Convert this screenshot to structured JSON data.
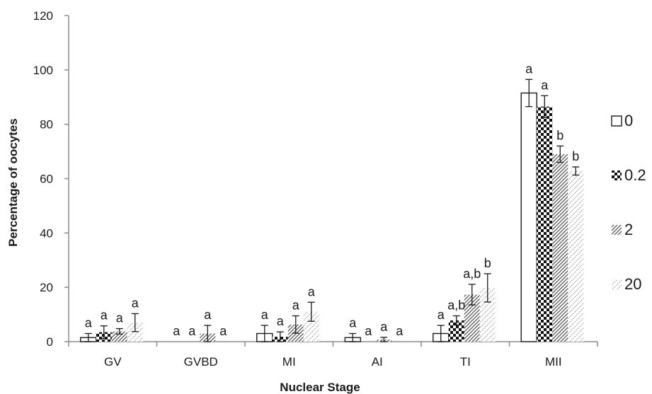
{
  "chart_data": {
    "type": "bar",
    "title": "",
    "xlabel": "Nuclear Stage",
    "ylabel": "Percentage of  oocytes",
    "ylim": [
      0,
      120
    ],
    "yticks": [
      0,
      20,
      40,
      60,
      80,
      100,
      120
    ],
    "grid": false,
    "legend_position": "right",
    "categories": [
      "GV",
      "GVBD",
      "MI",
      "AI",
      "TI",
      "MII"
    ],
    "series": [
      {
        "name": "0",
        "pattern": "open",
        "values": [
          1.5,
          0,
          3,
          1.5,
          3,
          91.5
        ],
        "errors": [
          1.5,
          0,
          3,
          1.5,
          3,
          5
        ],
        "labels": [
          "a",
          "a",
          "a",
          "a",
          "a",
          "a"
        ]
      },
      {
        "name": "0.2",
        "pattern": "checker",
        "values": [
          3.5,
          0,
          1.8,
          0,
          7.8,
          86.5
        ],
        "errors": [
          2.3,
          0,
          1.8,
          0,
          1.7,
          4
        ],
        "labels": [
          "a",
          "a",
          "a",
          "a",
          "a,b",
          "a"
        ]
      },
      {
        "name": "2",
        "pattern": "diagonal",
        "values": [
          3.8,
          3,
          6.3,
          0.8,
          17.3,
          69
        ],
        "errors": [
          1,
          3,
          3.2,
          0.8,
          3.8,
          3
        ],
        "labels": [
          "a",
          "a",
          "a",
          "a",
          "a,b",
          "b"
        ]
      },
      {
        "name": "20",
        "pattern": "dotted",
        "values": [
          7,
          0,
          11,
          0,
          19.8,
          62.8
        ],
        "errors": [
          3.3,
          0,
          3.5,
          0,
          5.2,
          1.5
        ],
        "labels": [
          "a",
          "a",
          "a",
          "a",
          "b",
          "b"
        ]
      }
    ]
  },
  "colors": {
    "ink": "#1a1a1a",
    "axis": "#8c8c8c",
    "background": "#ffffff"
  }
}
